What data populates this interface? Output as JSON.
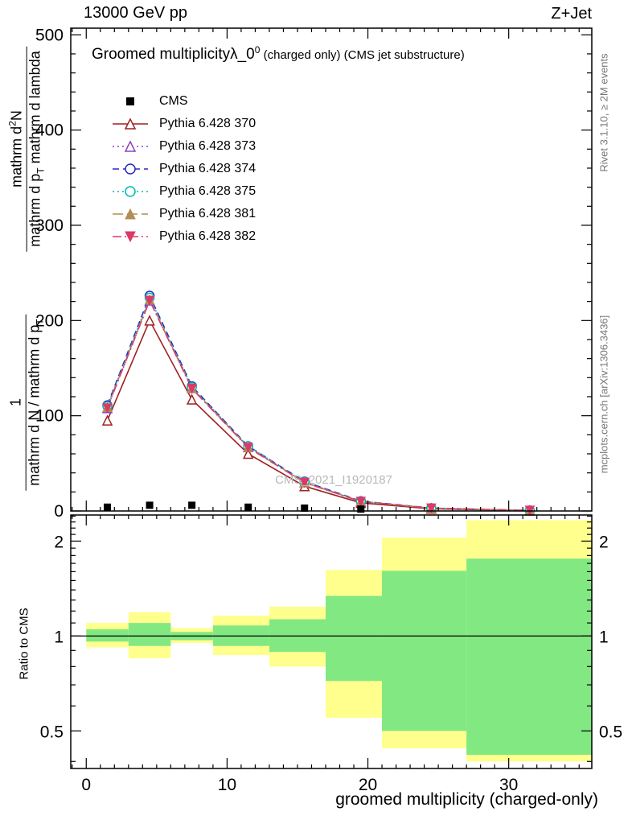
{
  "header": {
    "beam": "13000 GeV pp",
    "process": "Z+Jet"
  },
  "title": {
    "prefix": "Groomed multiplicity",
    "lambda": "λ_0",
    "sup": "0",
    "suffix": " (charged only) (CMS jet substructure)"
  },
  "watermark": "CMS_2021_I1920187",
  "side_labels": {
    "rivet": "Rivet 3.1.10, ≥ 2M events",
    "mcplots": "mcplots.cern.ch [arXiv:1306.3436]"
  },
  "axis_labels": {
    "x": "groomed multiplicity (charged-only)",
    "ratio_y": "Ratio to CMS",
    "main_y": {
      "num2": "mathrm d",
      "num2_sup": "2",
      "num2_b": "N",
      "den2": "mathrm d p",
      "den2_sub": "T",
      "den2_b": " mathrm d lambda",
      "num1": "1",
      "den1": "mathrm d N / mathrm d p",
      "den1_sub": "T"
    }
  },
  "chart_data": {
    "type": "line",
    "title": "Groomed multiplicity lambda_0^0 (charged only) (CMS jet substructure)",
    "xlabel": "groomed multiplicity (charged-only)",
    "ylabel": "1/(dN/dpT) d^2N/(dpT dlambda)",
    "legend_position": "upper-left",
    "grid": false,
    "xlim": [
      -1.1,
      35.9
    ],
    "main_ylim": [
      0,
      507
    ],
    "x_major_ticks": [
      0,
      10,
      20,
      30
    ],
    "main_y_major_ticks": [
      0,
      100,
      200,
      300,
      400,
      500
    ],
    "main_y_minor_step": 20,
    "x": [
      1.5,
      4.5,
      7.5,
      11.5,
      15.5,
      19.5,
      24.5,
      31.5
    ],
    "cms_data": {
      "label": "CMS",
      "color": "#000000",
      "x": [
        1.5,
        4.5,
        7.5,
        11.5,
        15.5,
        19.5
      ],
      "y": [
        4,
        6,
        6,
        4,
        3,
        2
      ]
    },
    "series": [
      {
        "name": "Pythia 6.428 370",
        "color": "#a02020",
        "dash": "solid",
        "marker": "triangle-open",
        "values": [
          95,
          200,
          117,
          60,
          26,
          8.5,
          2.3,
          0.4
        ]
      },
      {
        "name": "Pythia 6.428 373",
        "color": "#9040c0",
        "dash": "dotted",
        "marker": "triangle-open",
        "values": [
          108,
          221,
          129,
          67,
          30,
          10,
          2.9,
          0.5
        ]
      },
      {
        "name": "Pythia 6.428 374",
        "color": "#2828c8",
        "dash": "dashed",
        "marker": "circle-open",
        "values": [
          111,
          226,
          131,
          68,
          31,
          10.4,
          3.0,
          0.5
        ]
      },
      {
        "name": "Pythia 6.428 375",
        "color": "#00b8b0",
        "dash": "dotted",
        "marker": "circle-open",
        "values": [
          110,
          224,
          130,
          68,
          30.5,
          10.1,
          3.0,
          0.5
        ]
      },
      {
        "name": "Pythia 6.428 381",
        "color": "#b08d57",
        "dash": "longdash",
        "marker": "triangle-filled",
        "values": [
          109,
          222,
          129,
          67,
          30,
          10,
          2.9,
          0.5
        ]
      },
      {
        "name": "Pythia 6.428 382",
        "color": "#dc3a66",
        "dash": "dashdot",
        "marker": "triangle-down-filled",
        "values": [
          108,
          221,
          128.5,
          66.5,
          29.8,
          9.8,
          2.9,
          0.5
        ]
      }
    ],
    "ratio": {
      "scale": "log",
      "ylim": [
        0.38,
        2.42
      ],
      "line_y": 1,
      "y_major_ticks": [
        0.5,
        1,
        2
      ],
      "y_minor_ticks": [
        0.4,
        0.6,
        0.7,
        0.8,
        0.9,
        1.1,
        1.2,
        1.3,
        1.4,
        1.5,
        1.6,
        1.7,
        1.8,
        1.9,
        2.1,
        2.2,
        2.3,
        2.4
      ],
      "band_edges": [
        0,
        3,
        6,
        9,
        13,
        17,
        21,
        27,
        36
      ],
      "yellow": [
        [
          0.92,
          1.1
        ],
        [
          0.85,
          1.19
        ],
        [
          0.95,
          1.06
        ],
        [
          0.87,
          1.16
        ],
        [
          0.8,
          1.24
        ],
        [
          0.55,
          1.62
        ],
        [
          0.44,
          2.05
        ],
        [
          0.4,
          2.33
        ]
      ],
      "green": [
        [
          0.96,
          1.05
        ],
        [
          0.93,
          1.1
        ],
        [
          0.97,
          1.03
        ],
        [
          0.93,
          1.08
        ],
        [
          0.89,
          1.13
        ],
        [
          0.72,
          1.34
        ],
        [
          0.5,
          1.61
        ],
        [
          0.42,
          1.76
        ]
      ],
      "yellow_color": "#ffff8d",
      "green_color": "#82e882"
    }
  }
}
